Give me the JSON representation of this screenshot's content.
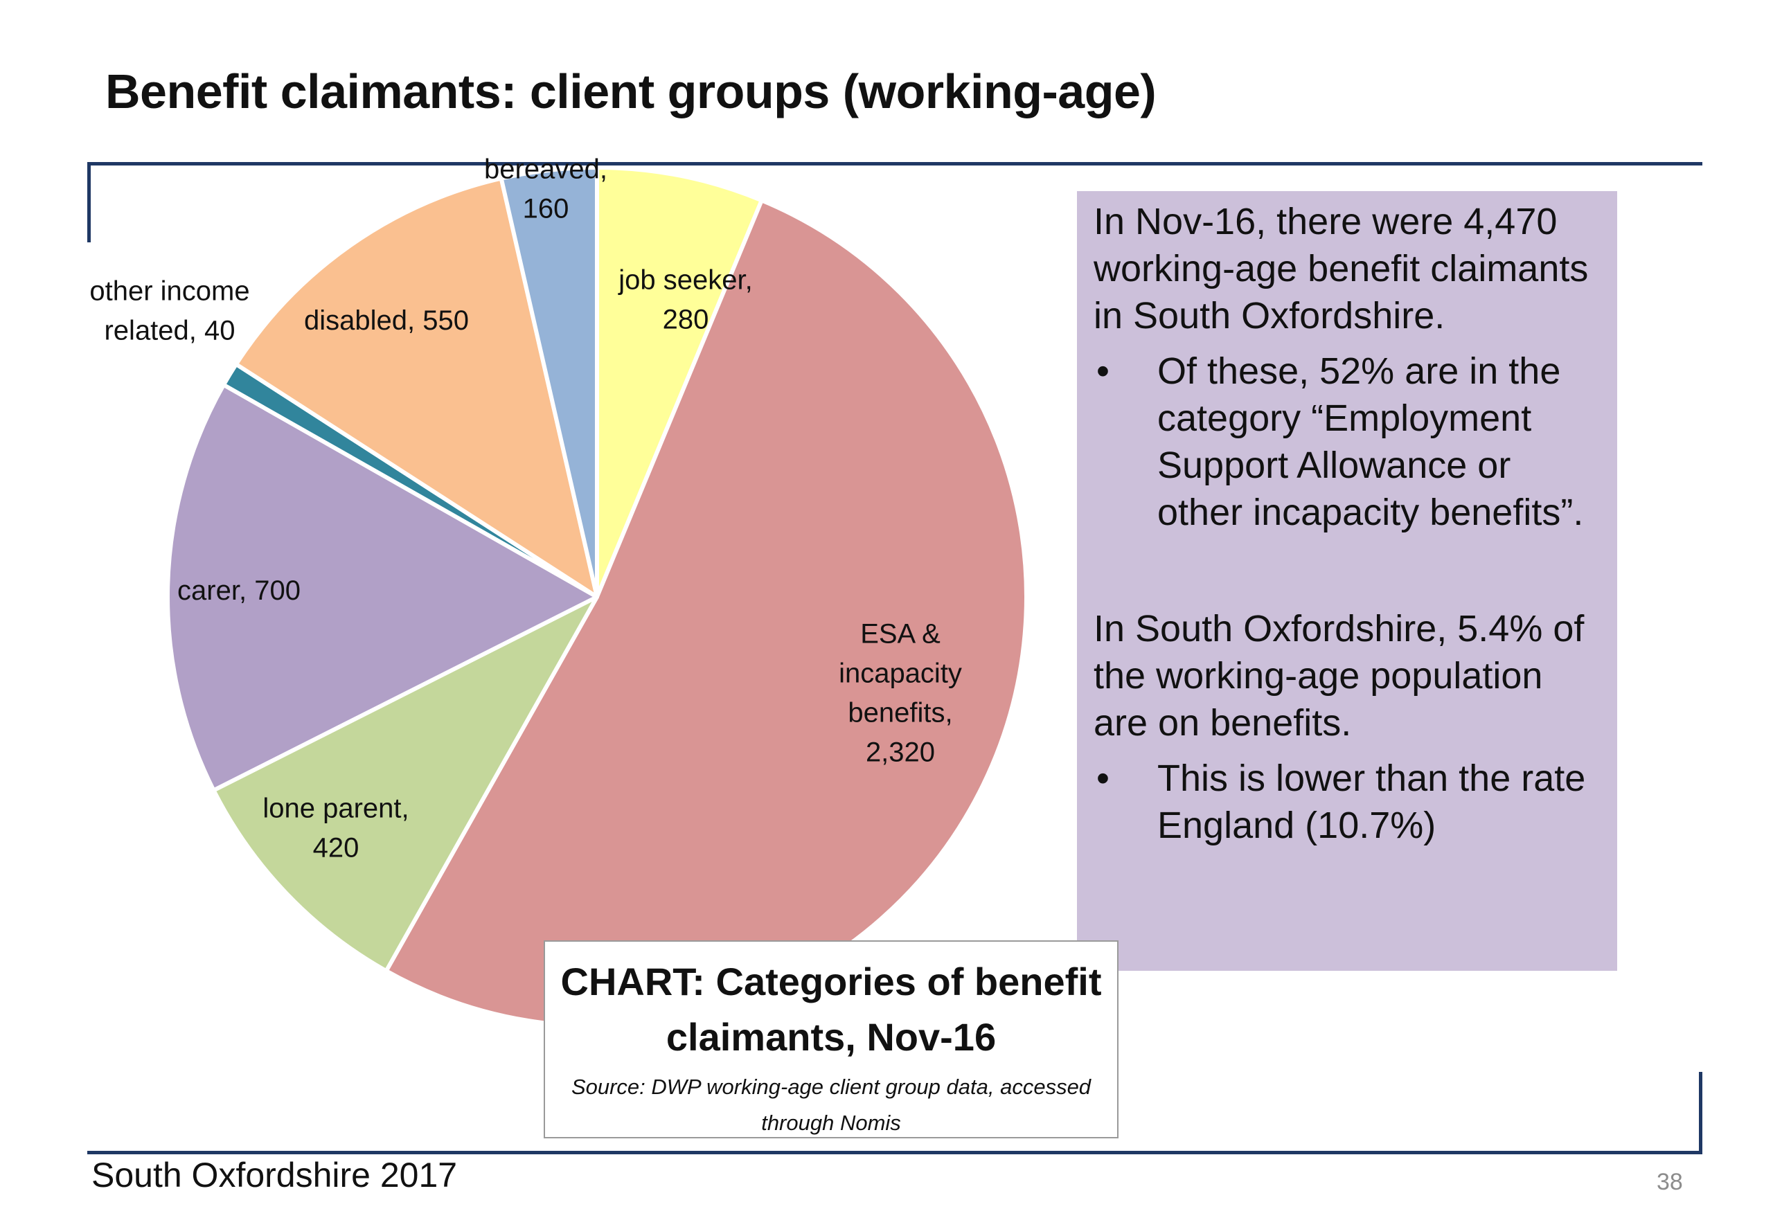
{
  "slide": {
    "title": "Benefit claimants: client groups (working-age)",
    "footer": "South Oxfordshire  2017",
    "page_number": "38"
  },
  "chart_data": {
    "type": "pie",
    "start": "top",
    "direction": "clockwise",
    "slices": [
      {
        "category": "job seeker",
        "value": 280,
        "label_lines": [
          "job seeker,",
          "280"
        ],
        "color": "#ffff99"
      },
      {
        "category": "ESA & incapacity benefits",
        "value": 2320,
        "label_lines": [
          "ESA &",
          "incapacity",
          "benefits,",
          "2,320"
        ],
        "color": "#d99594"
      },
      {
        "category": "lone parent",
        "value": 420,
        "label_lines": [
          "lone parent,",
          "420"
        ],
        "color": "#c4d79b"
      },
      {
        "category": "carer",
        "value": 700,
        "label_lines": [
          "carer, 700"
        ],
        "color": "#b1a0c7"
      },
      {
        "category": "other income related",
        "value": 40,
        "label_lines": [
          "other income",
          "related, 40"
        ],
        "color": "#31859c"
      },
      {
        "category": "disabled",
        "value": 550,
        "label_lines": [
          "disabled, 550"
        ],
        "color": "#fac090"
      },
      {
        "category": "bereaved",
        "value": 160,
        "label_lines": [
          "bereaved,",
          "160"
        ],
        "color": "#95b3d7"
      }
    ]
  },
  "info": {
    "para1": "In Nov-16, there were 4,470 working-age benefit claimants in South Oxfordshire.",
    "bullet1": "Of these, 52% are in the category “Employment Support Allowance or other incapacity benefits”.",
    "para2": "In South Oxfordshire, 5.4% of the working-age population are on benefits.",
    "bullet2": "This is lower than the rate England (10.7%)",
    "bullet_symbol": "•"
  },
  "caption": {
    "title": "CHART: Categories of benefit claimants, Nov-16",
    "source": "Source: DWP working-age client group data, accessed through Nomis"
  },
  "colors": {
    "rule": "#1f3864",
    "info_bg": "#ccc0da"
  }
}
